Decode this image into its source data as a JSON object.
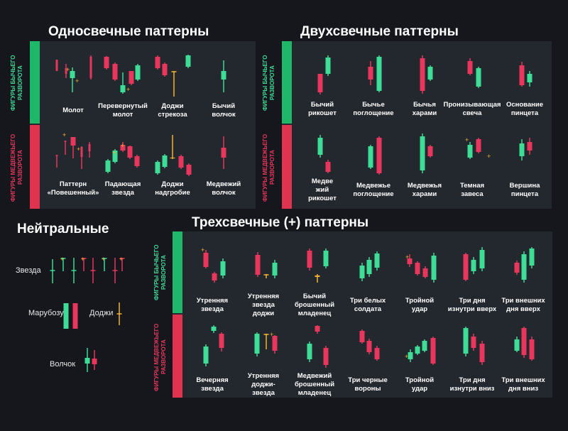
{
  "colors": {
    "bull": "#3ddc97",
    "bear": "#e8365d",
    "doji_accent": "#f2b430",
    "bg": "#15171c",
    "panel": "#23272e",
    "bar_green": "#1fb86b",
    "bar_red": "#e0334f"
  },
  "headings": {
    "single": "Односвечные паттерны",
    "double": "Двухсвечные паттерны",
    "neutral": "Нейтральные",
    "triple": "Трехсвечные (+) паттерны"
  },
  "side_labels": {
    "bull": "ФИГУРЫ БЫЧЬЕГО\nРАЗВОРОТА",
    "bear": "ФИГУРЫ МЕДВЕЖЬЕГО\nРАЗВОРОТА"
  },
  "single": {
    "bull": [
      "Молот",
      "Перевернутый\nмолот",
      "Доджи\nстрекоза",
      "Бычий\nволчок"
    ],
    "bear": [
      "Паттерн\n«Повешенный»",
      "Падающая\nзвезда",
      "Доджи\nнадгробие",
      "Медвежий\nволчок"
    ]
  },
  "double": {
    "bull": [
      "Бычий\nрикошет",
      "Бычье\nпоглощение",
      "Бычья\nхарами",
      "Пронизывающая\nсвеча",
      "Основание\nпинцета"
    ],
    "bear": [
      "Медве\nжий\nрикошет",
      "Медвежье\nпоглощение",
      "Медвежья\nхарами",
      "Темная\nзавеса",
      "Вершина\nпинцета"
    ]
  },
  "triple": {
    "bull": [
      "Утренняя\nзвезда",
      "Утренняя\nзвезда\nдоджи",
      "Бычий\nброшенный\nмладенец",
      "Три белых\nсолдата",
      "Тройной\nудар",
      "Три дня\nизнутри вверх",
      "Три внешних\nдня вверх"
    ],
    "bear": [
      "Вечерняя\nзвезда",
      "Утренняя\nдоджи-\nзвезда",
      "Медвежий\nброшенный\nмладенец",
      "Три черные\nвороны",
      "Тройной\nудар",
      "Три дня\nизнутри вниз",
      "Три внешних\nдня вниз"
    ]
  },
  "neutral": {
    "star": "Звезда",
    "marubozu": "Марубозу",
    "doji": "Доджи",
    "top": "Волчок"
  }
}
